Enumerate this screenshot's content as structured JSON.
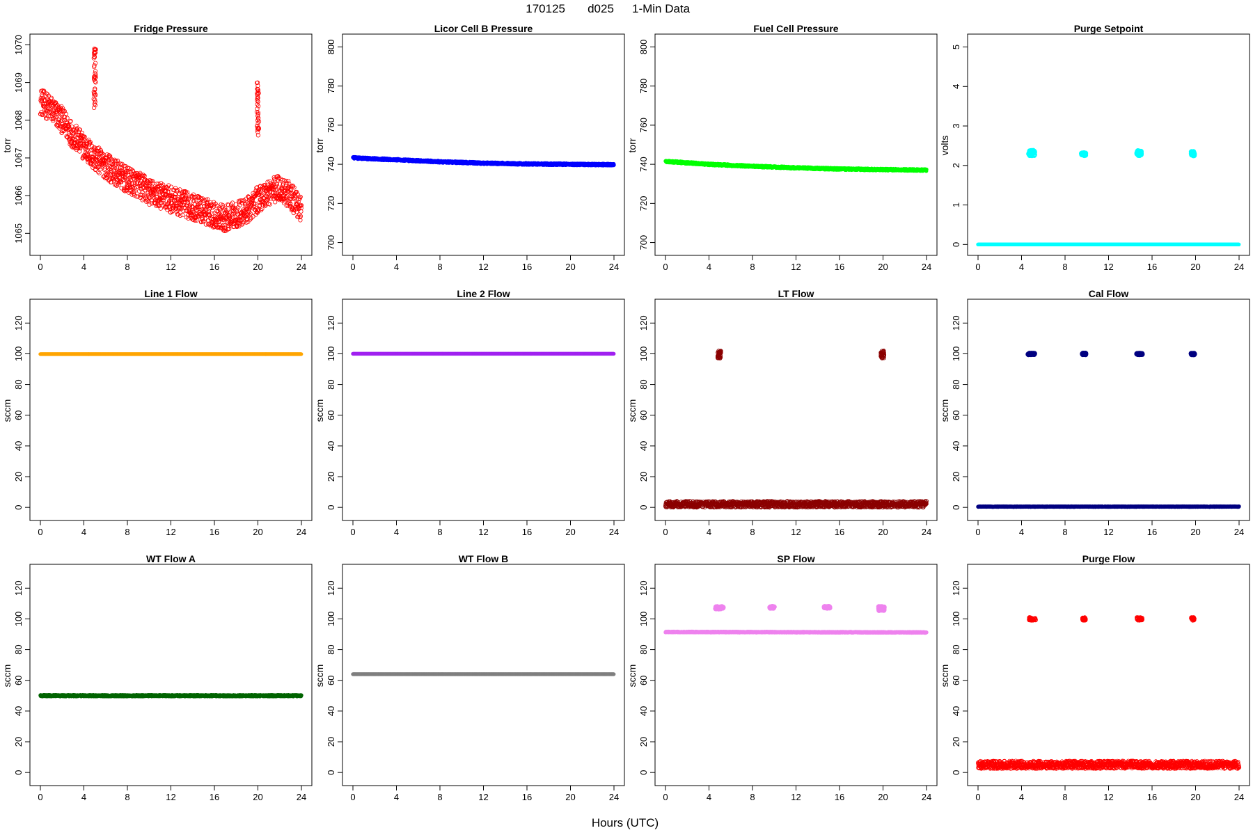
{
  "figure": {
    "title_date": "170125",
    "title_code": "d025",
    "title_label": "1-Min Data",
    "xlabel": "Hours (UTC)"
  },
  "chart_data": [
    {
      "type": "scatter",
      "title": "Fridge Pressure",
      "ylabel": "torr",
      "color": "#ff0000",
      "marker": "open",
      "xlim": [
        0,
        24
      ],
      "xticks": [
        0,
        4,
        8,
        12,
        16,
        20,
        24
      ],
      "ylim": [
        1064.6,
        1070.1
      ],
      "yticks": [
        1065,
        1066,
        1067,
        1068,
        1069,
        1070
      ],
      "series": [
        {
          "kind": "curve",
          "x": [
            0,
            1,
            2,
            3,
            4,
            5,
            6,
            7,
            8,
            9,
            10,
            11,
            12,
            13,
            14,
            15,
            16,
            17,
            18,
            19,
            20,
            21,
            22,
            23,
            24
          ],
          "y": [
            1068.5,
            1068.3,
            1068.0,
            1067.6,
            1067.3,
            1067.0,
            1066.8,
            1066.6,
            1066.4,
            1066.3,
            1066.1,
            1066.0,
            1065.9,
            1065.8,
            1065.7,
            1065.6,
            1065.5,
            1065.4,
            1065.5,
            1065.6,
            1065.9,
            1066.1,
            1066.2,
            1066.0,
            1065.6
          ],
          "spread": 0.35
        },
        {
          "kind": "cluster",
          "x": [
            4.9,
            5.1
          ],
          "y": [
            1068.3,
            1069.9
          ]
        },
        {
          "kind": "cluster",
          "x": [
            19.9,
            20.1
          ],
          "y": [
            1067.6,
            1069.0
          ]
        }
      ]
    },
    {
      "type": "scatter",
      "title": "Licor Cell B Pressure",
      "ylabel": "torr",
      "color": "#0000ff",
      "marker": "solid",
      "xlim": [
        0,
        24
      ],
      "xticks": [
        0,
        4,
        8,
        12,
        16,
        20,
        24
      ],
      "ylim": [
        697,
        803
      ],
      "yticks": [
        700,
        720,
        740,
        760,
        780,
        800
      ],
      "series": [
        {
          "kind": "curve",
          "x": [
            0,
            4,
            8,
            12,
            16,
            20,
            24
          ],
          "y": [
            743.3,
            742.3,
            741.3,
            740.6,
            740.2,
            740.0,
            739.8
          ],
          "spread": 0.5
        }
      ]
    },
    {
      "type": "scatter",
      "title": "Fuel Cell Pressure",
      "ylabel": "torr",
      "color": "#00ff00",
      "marker": "solid",
      "xlim": [
        0,
        24
      ],
      "xticks": [
        0,
        4,
        8,
        12,
        16,
        20,
        24
      ],
      "ylim": [
        697,
        803
      ],
      "yticks": [
        700,
        720,
        740,
        760,
        780,
        800
      ],
      "series": [
        {
          "kind": "curve",
          "x": [
            0,
            4,
            8,
            12,
            16,
            20,
            24
          ],
          "y": [
            741.5,
            740.0,
            739.0,
            738.2,
            737.6,
            737.3,
            737.0
          ],
          "spread": 0.5
        }
      ]
    },
    {
      "type": "scatter",
      "title": "Purge Setpoint",
      "ylabel": "volts",
      "color": "#00ffff",
      "marker": "solid",
      "xlim": [
        0,
        24
      ],
      "xticks": [
        0,
        4,
        8,
        12,
        16,
        20,
        24
      ],
      "ylim": [
        -0.1,
        5.15
      ],
      "yticks": [
        0,
        1,
        2,
        3,
        4,
        5
      ],
      "series": [
        {
          "kind": "curve",
          "x": [
            0,
            24
          ],
          "y": [
            0,
            0
          ],
          "spread": 0.0
        },
        {
          "kind": "cluster",
          "x": [
            4.6,
            5.2
          ],
          "y": [
            2.25,
            2.38
          ]
        },
        {
          "kind": "cluster",
          "x": [
            9.5,
            9.9
          ],
          "y": [
            2.25,
            2.32
          ]
        },
        {
          "kind": "cluster",
          "x": [
            14.6,
            15.0
          ],
          "y": [
            2.25,
            2.38
          ]
        },
        {
          "kind": "cluster",
          "x": [
            19.6,
            19.9
          ],
          "y": [
            2.25,
            2.35
          ]
        }
      ]
    },
    {
      "type": "scatter",
      "title": "Line 1 Flow",
      "ylabel": "sccm",
      "color": "#ffa500",
      "marker": "solid",
      "xlim": [
        0,
        24
      ],
      "xticks": [
        0,
        4,
        8,
        12,
        16,
        20,
        24
      ],
      "ylim": [
        -4,
        131
      ],
      "yticks": [
        0,
        20,
        40,
        60,
        80,
        100,
        120
      ],
      "series": [
        {
          "kind": "curve",
          "x": [
            0,
            24
          ],
          "y": [
            99.8,
            99.8
          ],
          "spread": 0.0
        }
      ]
    },
    {
      "type": "scatter",
      "title": "Line 2 Flow",
      "ylabel": "sccm",
      "color": "#a020f0",
      "marker": "solid",
      "xlim": [
        0,
        24
      ],
      "xticks": [
        0,
        4,
        8,
        12,
        16,
        20,
        24
      ],
      "ylim": [
        -4,
        131
      ],
      "yticks": [
        0,
        20,
        40,
        60,
        80,
        100,
        120
      ],
      "series": [
        {
          "kind": "curve",
          "x": [
            0,
            24
          ],
          "y": [
            100.0,
            100.0
          ],
          "spread": 0.0
        }
      ]
    },
    {
      "type": "scatter",
      "title": "LT Flow",
      "ylabel": "sccm",
      "color": "#8b0000",
      "marker": "open",
      "xlim": [
        0,
        24
      ],
      "xticks": [
        0,
        4,
        8,
        12,
        16,
        20,
        24
      ],
      "ylim": [
        -4,
        131
      ],
      "yticks": [
        0,
        20,
        40,
        60,
        80,
        100,
        120
      ],
      "series": [
        {
          "kind": "curve",
          "x": [
            0,
            24
          ],
          "y": [
            2,
            2
          ],
          "spread": 2.0
        },
        {
          "kind": "cluster",
          "x": [
            4.8,
            5.1
          ],
          "y": [
            97,
            102
          ]
        },
        {
          "kind": "cluster",
          "x": [
            19.8,
            20.1
          ],
          "y": [
            97,
            102
          ]
        }
      ]
    },
    {
      "type": "scatter",
      "title": "Cal Flow",
      "ylabel": "sccm",
      "color": "#000080",
      "marker": "solid",
      "xlim": [
        0,
        24
      ],
      "xticks": [
        0,
        4,
        8,
        12,
        16,
        20,
        24
      ],
      "ylim": [
        -4,
        131
      ],
      "yticks": [
        0,
        20,
        40,
        60,
        80,
        100,
        120
      ],
      "series": [
        {
          "kind": "curve",
          "x": [
            0,
            24
          ],
          "y": [
            0.5,
            0.5
          ],
          "spread": 0.2
        },
        {
          "kind": "cluster",
          "x": [
            4.6,
            5.2
          ],
          "y": [
            99.5,
            100.3
          ]
        },
        {
          "kind": "cluster",
          "x": [
            9.6,
            9.9
          ],
          "y": [
            99.5,
            100.3
          ]
        },
        {
          "kind": "cluster",
          "x": [
            14.6,
            15.1
          ],
          "y": [
            99.5,
            100.3
          ]
        },
        {
          "kind": "cluster",
          "x": [
            19.6,
            19.9
          ],
          "y": [
            99.5,
            100.3
          ]
        }
      ]
    },
    {
      "type": "scatter",
      "title": "WT Flow A",
      "ylabel": "sccm",
      "color": "#006400",
      "marker": "solid",
      "xlim": [
        0,
        24
      ],
      "xticks": [
        0,
        4,
        8,
        12,
        16,
        20,
        24
      ],
      "ylim": [
        -4,
        131
      ],
      "yticks": [
        0,
        20,
        40,
        60,
        80,
        100,
        120
      ],
      "series": [
        {
          "kind": "curve",
          "x": [
            0,
            24
          ],
          "y": [
            50,
            50
          ],
          "spread": 0.5
        }
      ]
    },
    {
      "type": "scatter",
      "title": "WT Flow B",
      "ylabel": "sccm",
      "color": "#7f7f7f",
      "marker": "solid",
      "xlim": [
        0,
        24
      ],
      "xticks": [
        0,
        4,
        8,
        12,
        16,
        20,
        24
      ],
      "ylim": [
        -4,
        131
      ],
      "yticks": [
        0,
        20,
        40,
        60,
        80,
        100,
        120
      ],
      "series": [
        {
          "kind": "curve",
          "x": [
            0,
            24
          ],
          "y": [
            64,
            64
          ],
          "spread": 0.0
        }
      ]
    },
    {
      "type": "scatter",
      "title": "SP Flow",
      "ylabel": "sccm",
      "color": "#ee82ee",
      "marker": "solid",
      "xlim": [
        0,
        24
      ],
      "xticks": [
        0,
        4,
        8,
        12,
        16,
        20,
        24
      ],
      "ylim": [
        -4,
        131
      ],
      "yticks": [
        0,
        20,
        40,
        60,
        80,
        100,
        120
      ],
      "series": [
        {
          "kind": "curve",
          "x": [
            0,
            24
          ],
          "y": [
            91.5,
            91.2
          ],
          "spread": 0.3
        },
        {
          "kind": "cluster",
          "x": [
            4.6,
            5.3
          ],
          "y": [
            106.5,
            108
          ]
        },
        {
          "kind": "cluster",
          "x": [
            9.6,
            10.0
          ],
          "y": [
            107,
            108
          ]
        },
        {
          "kind": "cluster",
          "x": [
            14.6,
            15.1
          ],
          "y": [
            107,
            108
          ]
        },
        {
          "kind": "cluster",
          "x": [
            19.6,
            20.1
          ],
          "y": [
            105.5,
            108
          ]
        }
      ]
    },
    {
      "type": "scatter",
      "title": "Purge Flow",
      "ylabel": "sccm",
      "color": "#ff0000",
      "marker": "open",
      "xlim": [
        0,
        24
      ],
      "xticks": [
        0,
        4,
        8,
        12,
        16,
        20,
        24
      ],
      "ylim": [
        -4,
        131
      ],
      "yticks": [
        0,
        20,
        40,
        60,
        80,
        100,
        120
      ],
      "series": [
        {
          "kind": "curve",
          "x": [
            0,
            24
          ],
          "y": [
            5,
            5
          ],
          "spread": 2.5
        },
        {
          "kind": "cluster",
          "x": [
            4.7,
            5.3
          ],
          "y": [
            99,
            101
          ]
        },
        {
          "kind": "cluster",
          "x": [
            9.6,
            9.9
          ],
          "y": [
            99,
            101
          ]
        },
        {
          "kind": "cluster",
          "x": [
            14.6,
            15.1
          ],
          "y": [
            99,
            101
          ]
        },
        {
          "kind": "cluster",
          "x": [
            19.6,
            19.9
          ],
          "y": [
            99,
            101
          ]
        }
      ]
    }
  ]
}
